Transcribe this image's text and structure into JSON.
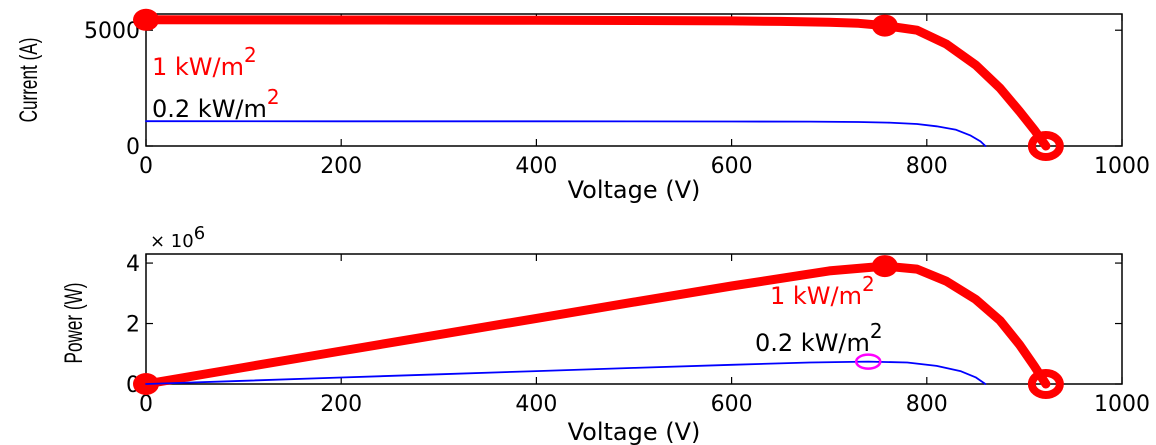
{
  "chart_data": [
    {
      "type": "line",
      "xlabel": "Voltage (V)",
      "ylabel": "Current (A)",
      "xlim": [
        0,
        1000
      ],
      "ylim": [
        0,
        5700
      ],
      "xticks": [
        0,
        200,
        400,
        600,
        800,
        1000
      ],
      "yticks": [
        0,
        5000
      ],
      "x_tick_labels": [
        "0",
        "200",
        "400",
        "600",
        "800",
        "1000"
      ],
      "y_tick_labels": [
        "0",
        "5000"
      ],
      "series": [
        {
          "color": "#ff0000",
          "points": [
            [
              0,
              5450
            ],
            [
              100,
              5445
            ],
            [
              200,
              5440
            ],
            [
              300,
              5435
            ],
            [
              400,
              5430
            ],
            [
              500,
              5420
            ],
            [
              600,
              5400
            ],
            [
              650,
              5380
            ],
            [
              700,
              5340
            ],
            [
              730,
              5300
            ],
            [
              757,
              5200
            ],
            [
              790,
              5000
            ],
            [
              820,
              4400
            ],
            [
              850,
              3500
            ],
            [
              875,
              2500
            ],
            [
              895,
              1500
            ],
            [
              910,
              700
            ],
            [
              922,
              0
            ]
          ],
          "markers": [
            [
              0,
              5450
            ],
            [
              757,
              5200
            ],
            [
              922,
              0
            ]
          ],
          "label": "1 kW/m",
          "label_sup": "2"
        },
        {
          "color": "#0000ff",
          "points": [
            [
              0,
              1070
            ],
            [
              200,
              1068
            ],
            [
              400,
              1066
            ],
            [
              600,
              1060
            ],
            [
              680,
              1055
            ],
            [
              730,
              1035
            ],
            [
              760,
              1010
            ],
            [
              790,
              950
            ],
            [
              810,
              850
            ],
            [
              830,
              700
            ],
            [
              845,
              450
            ],
            [
              855,
              200
            ],
            [
              860,
              0
            ]
          ],
          "label": "0.2 kW/m",
          "label_sup": "2"
        }
      ]
    },
    {
      "type": "line",
      "xlabel": "Voltage (V)",
      "ylabel": "Power (W)",
      "multiplier_label": "× 10",
      "multiplier_exp": "6",
      "xlim": [
        0,
        1000
      ],
      "ylim": [
        0,
        4.3
      ],
      "xticks": [
        0,
        200,
        400,
        600,
        800,
        1000
      ],
      "yticks": [
        0,
        2,
        4
      ],
      "x_tick_labels": [
        "0",
        "200",
        "400",
        "600",
        "800",
        "1000"
      ],
      "y_tick_labels": [
        "0",
        "2",
        "4"
      ],
      "series": [
        {
          "color": "#ff0000",
          "points": [
            [
              0,
              0
            ],
            [
              100,
              0.545
            ],
            [
              200,
              1.09
            ],
            [
              300,
              1.63
            ],
            [
              400,
              2.17
            ],
            [
              500,
              2.71
            ],
            [
              600,
              3.24
            ],
            [
              700,
              3.74
            ],
            [
              757,
              3.9
            ],
            [
              790,
              3.8
            ],
            [
              820,
              3.4
            ],
            [
              850,
              2.8
            ],
            [
              875,
              2.1
            ],
            [
              895,
              1.3
            ],
            [
              910,
              0.6
            ],
            [
              922,
              0
            ]
          ],
          "markers": [
            [
              0,
              0
            ],
            [
              757,
              3.9
            ],
            [
              922,
              0
            ]
          ],
          "label": "1 kW/m",
          "label_sup": "2"
        },
        {
          "color": "#0000ff",
          "points": [
            [
              0,
              0
            ],
            [
              100,
              0.107
            ],
            [
              200,
              0.214
            ],
            [
              300,
              0.32
            ],
            [
              400,
              0.427
            ],
            [
              500,
              0.532
            ],
            [
              600,
              0.636
            ],
            [
              680,
              0.71
            ],
            [
              740,
              0.74
            ],
            [
              780,
              0.71
            ],
            [
              810,
              0.6
            ],
            [
              835,
              0.42
            ],
            [
              850,
              0.22
            ],
            [
              860,
              0
            ]
          ],
          "label": "0.2 kW/m",
          "label_sup": "2"
        }
      ],
      "mpp_marker": {
        "x": 740,
        "y": 0.74,
        "color": "#ff00ff"
      }
    }
  ]
}
